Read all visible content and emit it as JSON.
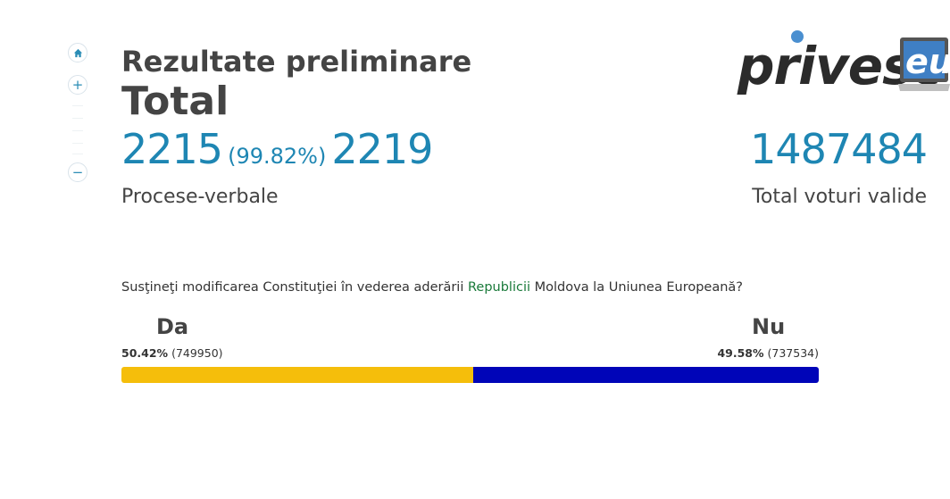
{
  "header": {
    "title": "Rezultate preliminare",
    "subtitle": "Total"
  },
  "reports": {
    "processed": "2215",
    "percent": "(99.82%)",
    "total": "2219",
    "label": "Procese-verbale"
  },
  "votes": {
    "total_valid": "1487484",
    "label": "Total voturi valide"
  },
  "logo": {
    "text": "privesc",
    "suffix": "eu"
  },
  "referendum": {
    "question_part1": "Susţineţi modificarea Constituţiei în vederea aderării ",
    "question_highlight": "Republicii",
    "question_part2": " Moldova la Uniunea Europeană?",
    "yes": {
      "label": "Da",
      "percent": "50.42%",
      "count": "(749950)",
      "share": 0.5042,
      "color": "#f5be0b"
    },
    "no": {
      "label": "Nu",
      "percent": "49.58%",
      "count": "(737534)",
      "share": 0.4958,
      "color": "#0005b8"
    }
  },
  "map_controls": {
    "icons": [
      "home-icon",
      "plus-icon",
      "minus-icon"
    ]
  }
}
